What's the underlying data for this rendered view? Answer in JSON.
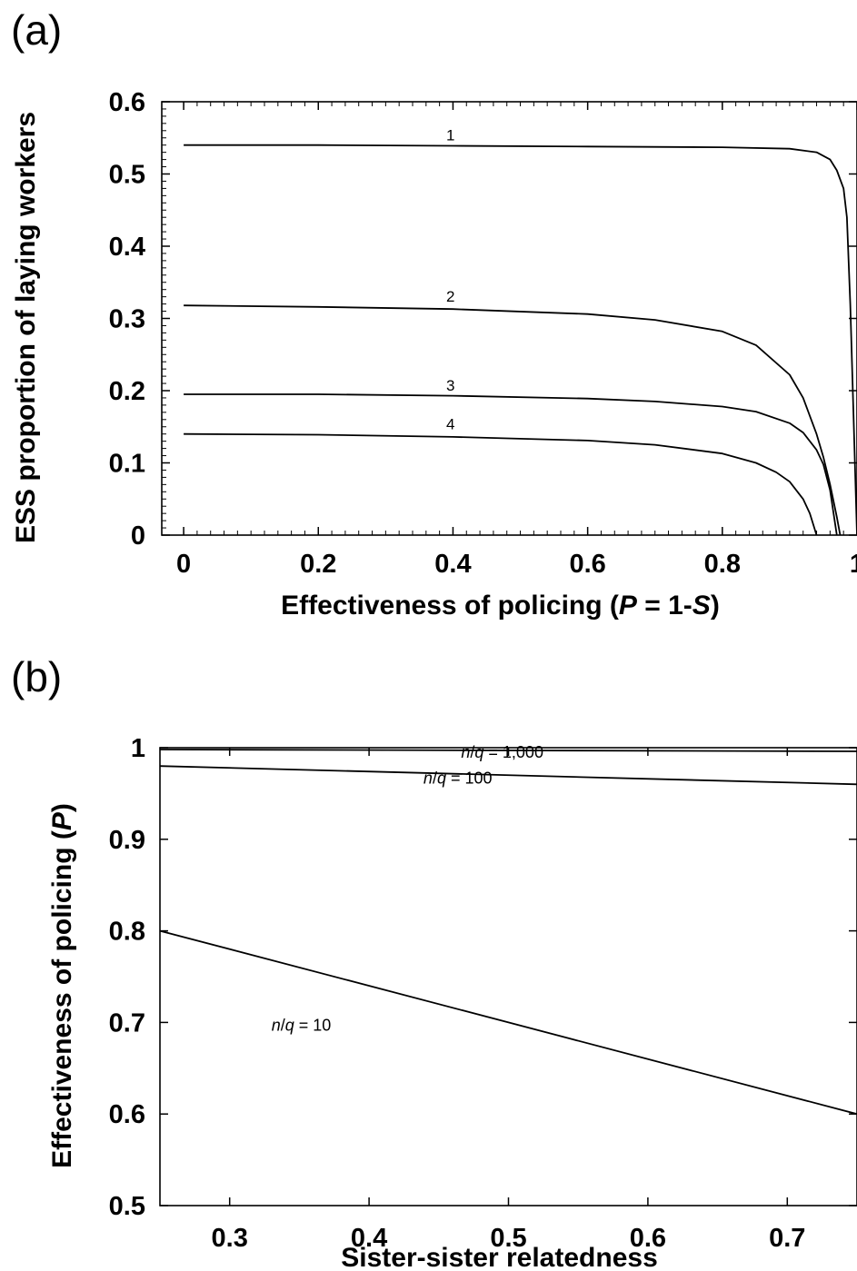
{
  "panels": [
    "(a)",
    "(b)"
  ],
  "chart_data": [
    {
      "type": "line",
      "title": "",
      "xlabel": "Effectiveness of policing (P = 1-S)",
      "xlabel_parts": [
        {
          "text": "Effectiveness of policing (",
          "italic": false
        },
        {
          "text": "P",
          "italic": true
        },
        {
          "text": " = 1-",
          "italic": false
        },
        {
          "text": "S",
          "italic": true
        },
        {
          "text": ")",
          "italic": false
        }
      ],
      "ylabel": "ESS proportion of laying workers",
      "xlim": [
        0,
        1
      ],
      "ylim": [
        0,
        0.6
      ],
      "xticks": [
        0,
        0.2,
        0.4,
        0.6,
        0.8,
        1
      ],
      "xtick_labels": [
        "0",
        "0.2",
        "0.4",
        "0.6",
        "0.8",
        "1"
      ],
      "yticks": [
        0,
        0.1,
        0.2,
        0.3,
        0.4,
        0.5,
        0.6
      ],
      "ytick_labels": [
        "0",
        "0.1",
        "0.2",
        "0.3",
        "0.4",
        "0.5",
        "0.6"
      ],
      "grid": false,
      "series": [
        {
          "name": "1",
          "label_x": 0.39,
          "label_y": 0.54,
          "x": [
            0,
            0.2,
            0.4,
            0.6,
            0.8,
            0.9,
            0.94,
            0.96,
            0.97,
            0.98,
            0.985,
            0.99,
            0.995,
            0.999,
            1.0
          ],
          "y": [
            0.54,
            0.54,
            0.539,
            0.538,
            0.537,
            0.535,
            0.53,
            0.52,
            0.505,
            0.48,
            0.44,
            0.32,
            0.16,
            0.03,
            0
          ]
        },
        {
          "name": "2",
          "label_x": 0.39,
          "label_y": 0.317,
          "x": [
            0,
            0.2,
            0.4,
            0.6,
            0.7,
            0.8,
            0.85,
            0.9,
            0.92,
            0.94,
            0.95,
            0.96,
            0.97,
            0.975
          ],
          "y": [
            0.318,
            0.316,
            0.313,
            0.306,
            0.298,
            0.282,
            0.263,
            0.222,
            0.19,
            0.14,
            0.108,
            0.07,
            0.025,
            0
          ]
        },
        {
          "name": "3",
          "label_x": 0.39,
          "label_y": 0.194,
          "x": [
            0,
            0.2,
            0.4,
            0.6,
            0.7,
            0.8,
            0.85,
            0.9,
            0.92,
            0.94,
            0.95,
            0.96,
            0.97
          ],
          "y": [
            0.195,
            0.195,
            0.193,
            0.189,
            0.185,
            0.178,
            0.171,
            0.155,
            0.142,
            0.118,
            0.098,
            0.062,
            0
          ]
        },
        {
          "name": "4",
          "label_x": 0.39,
          "label_y": 0.14,
          "x": [
            0,
            0.2,
            0.4,
            0.6,
            0.7,
            0.8,
            0.85,
            0.88,
            0.9,
            0.92,
            0.93,
            0.94
          ],
          "y": [
            0.14,
            0.139,
            0.136,
            0.131,
            0.125,
            0.113,
            0.1,
            0.087,
            0.074,
            0.05,
            0.03,
            0
          ]
        }
      ]
    },
    {
      "type": "line",
      "title": "",
      "xlabel": "Sister-sister relatedness",
      "ylabel": "Effectiveness of policing (P)",
      "ylabel_parts": [
        {
          "text": "Effectiveness of policing (",
          "italic": false
        },
        {
          "text": "P",
          "italic": true
        },
        {
          "text": ")",
          "italic": false
        }
      ],
      "xlim": [
        0.25,
        0.75
      ],
      "ylim": [
        0.5,
        1.0
      ],
      "xticks": [
        0.3,
        0.4,
        0.5,
        0.6,
        0.7
      ],
      "xtick_labels": [
        "0.3",
        "0.4",
        "0.5",
        "0.6",
        "0.7"
      ],
      "yticks": [
        0.5,
        0.6,
        0.7,
        0.8,
        0.9,
        1.0
      ],
      "ytick_labels": [
        "0.5",
        "0.6",
        "0.7",
        "0.8",
        "0.9",
        "1"
      ],
      "grid": false,
      "series": [
        {
          "name": "n/q = 1,000",
          "prefix": "n",
          "mid": "/",
          "var": "q",
          "suffix": " = 1,000",
          "label_x": 0.466,
          "label_y": 0.984,
          "x": [
            0.25,
            0.75
          ],
          "y": [
            0.998,
            0.996
          ]
        },
        {
          "name": "n/q = 100",
          "prefix": "n",
          "mid": "/",
          "var": "q",
          "suffix": " = 100",
          "label_x": 0.439,
          "label_y": 0.956,
          "x": [
            0.25,
            0.75
          ],
          "y": [
            0.98,
            0.96
          ]
        },
        {
          "name": "n/q = 10",
          "prefix": "n",
          "mid": "/",
          "var": "q",
          "suffix": " = 10",
          "label_x": 0.33,
          "label_y": 0.686,
          "x": [
            0.25,
            0.75
          ],
          "y": [
            0.8,
            0.6
          ]
        }
      ]
    }
  ]
}
